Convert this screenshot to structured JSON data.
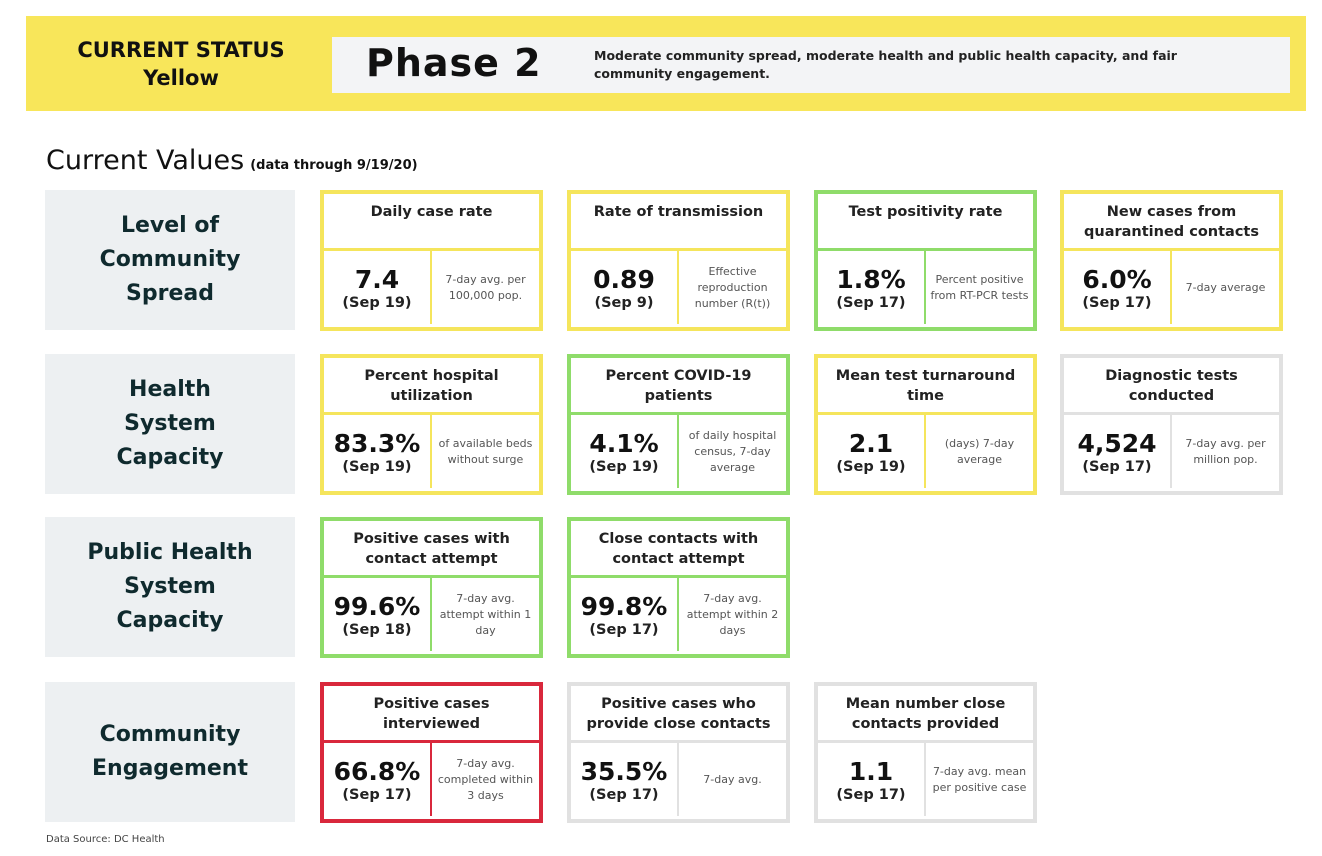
{
  "status": {
    "line1": "CURRENT STATUS",
    "line2": "Yellow",
    "phase": "Phase 2",
    "description": "Moderate community spread, moderate health and public health capacity, and fair community engagement."
  },
  "current_values": {
    "title": "Current Values",
    "subtitle": "(data through 9/19/20)"
  },
  "rows": [
    {
      "label": "Level of Community Spread",
      "cards": [
        {
          "title": "Daily case rate",
          "value": "7.4",
          "date": "(Sep 19)",
          "note": "7-day avg. per 100,000 pop.",
          "color": "yellow"
        },
        {
          "title": "Rate of transmission",
          "value": "0.89",
          "date": "(Sep 9)",
          "note": "Effective reproduction number (R(t))",
          "color": "yellow"
        },
        {
          "title": "Test positivity rate",
          "value": "1.8%",
          "date": "(Sep 17)",
          "note": "Percent positive from RT-PCR tests",
          "color": "green"
        },
        {
          "title": "New cases from quarantined contacts",
          "value": "6.0%",
          "date": "(Sep 17)",
          "note": "7-day average",
          "color": "yellow"
        }
      ]
    },
    {
      "label": "Health System Capacity",
      "cards": [
        {
          "title": "Percent hospital utilization",
          "value": "83.3%",
          "date": "(Sep 19)",
          "note": "of available beds without surge",
          "color": "yellow"
        },
        {
          "title": "Percent COVID-19 patients",
          "value": "4.1%",
          "date": "(Sep 19)",
          "note": "of daily hospital census, 7-day average",
          "color": "green"
        },
        {
          "title": "Mean test turnaround time",
          "value": "2.1",
          "date": "(Sep 19)",
          "note": "(days) 7-day average",
          "color": "yellow"
        },
        {
          "title": "Diagnostic tests conducted",
          "value": "4,524",
          "date": "(Sep 17)",
          "note": "7-day avg. per million pop.",
          "color": "gray"
        }
      ]
    },
    {
      "label": "Public Health System Capacity",
      "cards": [
        {
          "title": "Positive cases with contact attempt",
          "value": "99.6%",
          "date": "(Sep 18)",
          "note": "7-day avg. attempt within 1 day",
          "color": "green"
        },
        {
          "title": "Close contacts with contact attempt",
          "value": "99.8%",
          "date": "(Sep 17)",
          "note": "7-day avg. attempt within 2 days",
          "color": "green"
        }
      ]
    },
    {
      "label": "Community Engagement",
      "cards": [
        {
          "title": "Positive cases interviewed",
          "value": "66.8%",
          "date": "(Sep 17)",
          "note": "7-day avg. completed within 3 days",
          "color": "red"
        },
        {
          "title": "Positive cases who provide close contacts",
          "value": "35.5%",
          "date": "(Sep 17)",
          "note": "7-day avg.",
          "color": "gray"
        },
        {
          "title": "Mean number close contacts provided",
          "value": "1.1",
          "date": "(Sep 17)",
          "note": "7-day avg. mean per positive case",
          "color": "gray"
        }
      ]
    }
  ],
  "source": "Data Source: DC Health"
}
